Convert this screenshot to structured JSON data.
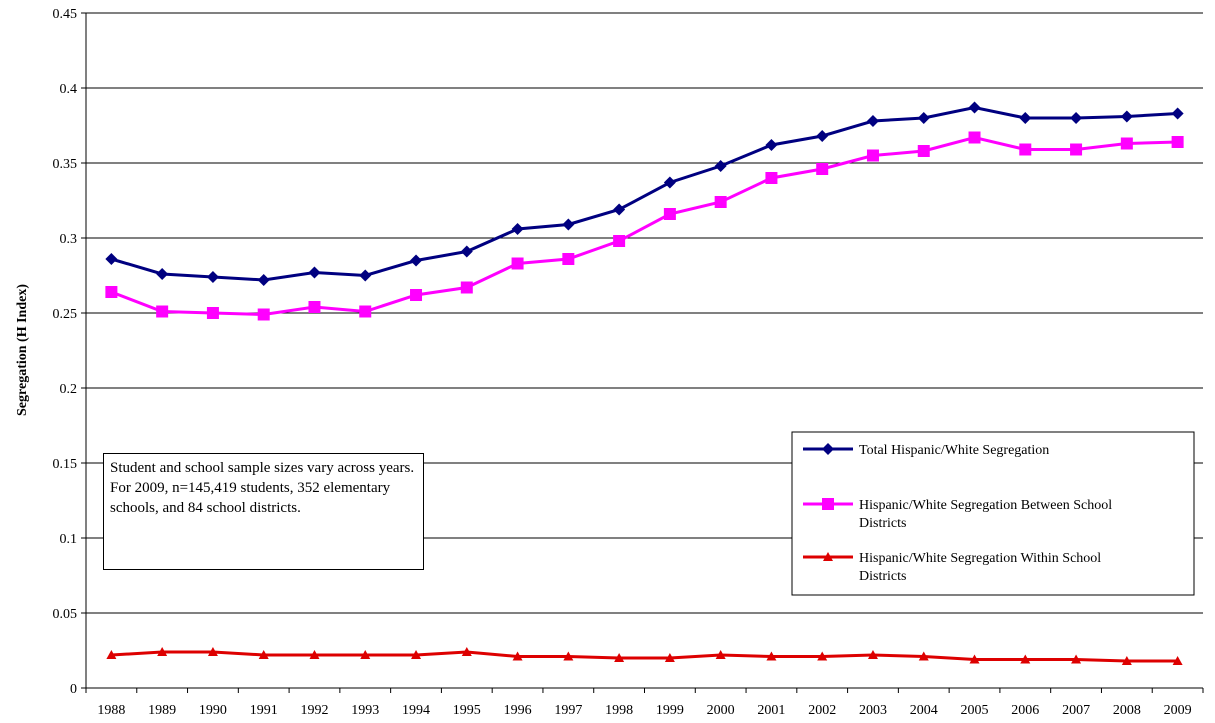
{
  "chart_data": {
    "type": "line",
    "title": "",
    "xlabel": "",
    "ylabel": "Segregation (H Index)",
    "ylim": [
      0,
      0.45
    ],
    "yticks": [
      "0",
      "0.05",
      "0.1",
      "0.15",
      "0.2",
      "0.25",
      "0.3",
      "0.35",
      "0.4",
      "0.45"
    ],
    "grid": true,
    "legend_position": "right",
    "categories": [
      "1988",
      "1989",
      "1990",
      "1991",
      "1992",
      "1993",
      "1994",
      "1995",
      "1996",
      "1997",
      "1998",
      "1999",
      "2000",
      "2001",
      "2002",
      "2003",
      "2004",
      "2005",
      "2006",
      "2007",
      "2008",
      "2009"
    ],
    "series": [
      {
        "name": "Total Hispanic/White Segregation",
        "color": "#000080",
        "marker": "diamond",
        "values": [
          0.286,
          0.276,
          0.274,
          0.272,
          0.277,
          0.275,
          0.285,
          0.291,
          0.306,
          0.309,
          0.319,
          0.337,
          0.348,
          0.362,
          0.368,
          0.378,
          0.38,
          0.387,
          0.38,
          0.38,
          0.381,
          0.383
        ]
      },
      {
        "name": "Hispanic/White Segregation Between School Districts",
        "color": "#FF00FF",
        "marker": "square",
        "values": [
          0.264,
          0.251,
          0.25,
          0.249,
          0.254,
          0.251,
          0.262,
          0.267,
          0.283,
          0.286,
          0.298,
          0.316,
          0.324,
          0.34,
          0.346,
          0.355,
          0.358,
          0.367,
          0.359,
          0.359,
          0.363,
          0.364
        ]
      },
      {
        "name": "Hispanic/White Segregation Within School Districts",
        "color": "#DD0000",
        "marker": "triangle",
        "values": [
          0.022,
          0.024,
          0.024,
          0.022,
          0.022,
          0.022,
          0.022,
          0.024,
          0.021,
          0.021,
          0.02,
          0.02,
          0.022,
          0.021,
          0.021,
          0.022,
          0.021,
          0.019,
          0.019,
          0.019,
          0.018,
          0.018
        ]
      }
    ],
    "annotation": "Student and school sample sizes vary across years. For 2009, n=145,419 students, 352 elementary schools, and 84 school districts."
  }
}
